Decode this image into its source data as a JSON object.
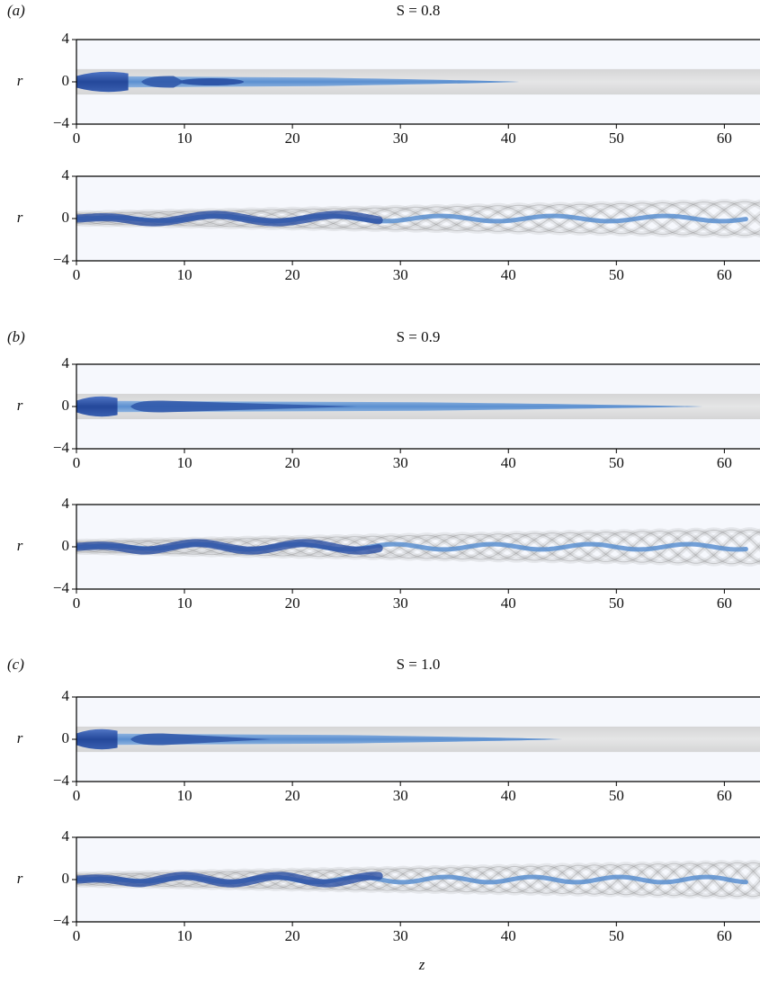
{
  "figure": {
    "panels": [
      {
        "label": "(a)",
        "title": "S = 0.8"
      },
      {
        "label": "(b)",
        "title": "S = 0.9"
      },
      {
        "label": "(c)",
        "title": "S = 1.0"
      }
    ],
    "axes": {
      "xlabel": "z",
      "ylabel": "r",
      "xlim": [
        0,
        63.3
      ],
      "ylim": [
        -4,
        4
      ],
      "xticks": [
        0,
        10,
        20,
        30,
        40,
        50,
        60
      ],
      "yticks": [
        {
          "value": -4,
          "label": "−4"
        },
        0,
        4
      ]
    }
  }
}
